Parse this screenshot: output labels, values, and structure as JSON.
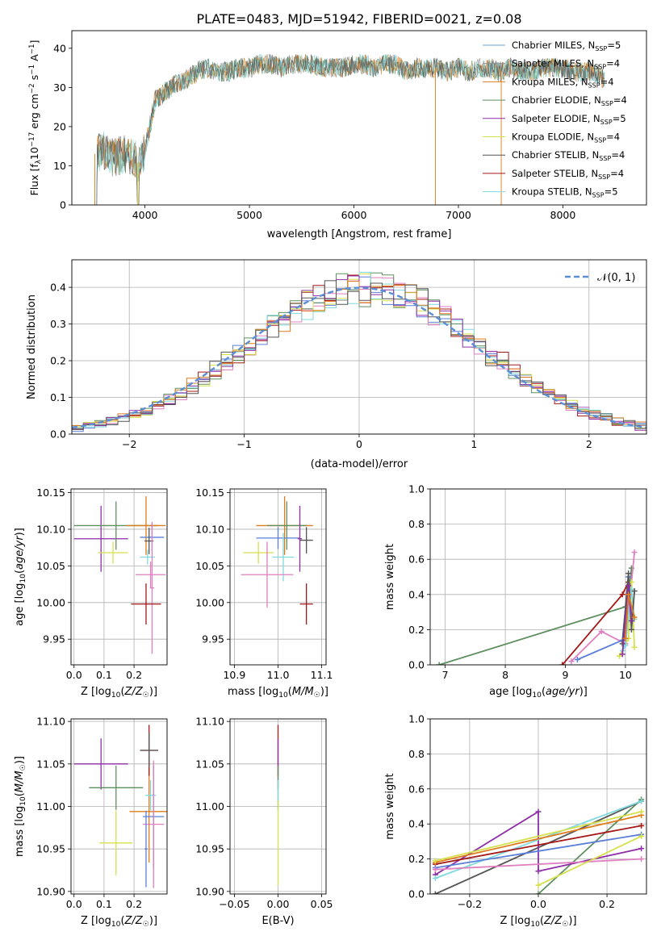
{
  "figure_title": "PLATE=0483, MJD=51942, FIBERID=0021, z=0.08",
  "colors": {
    "chabrier_miles": "#6aa6d6",
    "salpeter_miles": "#8c8c8c",
    "kroupa_miles": "#e07b1c",
    "chabrier_elodie": "#5e8f5e",
    "salpeter_elodie": "#8e2fa8",
    "kroupa_elodie": "#d6e04a",
    "chabrier_stelib": "#555555",
    "salpeter_stelib": "#a41818",
    "kroupa_stelib": "#7fd9e0",
    "pink": "#e07fbf",
    "blue": "#5b7fd8",
    "dashed_normal": "#5a8fd6"
  },
  "chart_data": [
    {
      "id": "spectrum",
      "type": "line",
      "title": "PLATE=0483, MJD=51942, FIBERID=0021, z=0.08",
      "xlabel": "wavelength [Angstrom, rest frame]",
      "ylabel": "Flux [f_λ 10^-17 erg cm^-2 s^-1 A^-1]",
      "xlim": [
        3300,
        8800
      ],
      "ylim": [
        0,
        44.5
      ],
      "xticks": [
        "4000",
        "5000",
        "6000",
        "7000",
        "8000"
      ],
      "yticks": [
        "0",
        "10",
        "20",
        "30",
        "40"
      ],
      "grid": false,
      "legend_position": "top-right",
      "series": [
        {
          "name": "Chabrier MILES, N_SSP=5"
        },
        {
          "name": "Salpeter MILES, N_SSP=4"
        },
        {
          "name": "Kroupa MILES, N_SSP=4"
        },
        {
          "name": "Chabrier ELODIE, N_SSP=4"
        },
        {
          "name": "Salpeter ELODIE, N_SSP=5"
        },
        {
          "name": "Kroupa ELODIE, N_SSP=4"
        },
        {
          "name": "Chabrier STELIB, N_SSP=4"
        },
        {
          "name": "Salpeter STELIB, N_SSP=4"
        },
        {
          "name": "Kroupa STELIB, N_SSP=5"
        }
      ],
      "envelope": {
        "x": [
          3520,
          3600,
          3700,
          3800,
          3900,
          3950,
          4000,
          4100,
          4200,
          4300,
          4400,
          4500,
          4600,
          4700,
          4800,
          4900,
          5000,
          5100,
          5200,
          5300,
          5400,
          5500,
          5600,
          5700,
          5800,
          5900,
          6000,
          6100,
          6200,
          6300,
          6400,
          6500,
          6600,
          6700,
          6800,
          6900,
          7000,
          7100,
          7200,
          7300,
          7400,
          7500,
          7600,
          7700,
          7800,
          7900,
          8000,
          8100,
          8200,
          8300,
          8400
        ],
        "y": [
          13,
          14,
          12,
          13,
          12,
          10,
          14,
          27,
          29,
          31,
          32,
          34,
          35,
          34,
          34,
          35,
          35,
          36,
          36,
          35,
          36,
          36,
          36,
          35,
          35,
          35,
          36,
          36,
          35,
          36,
          36,
          34,
          35,
          35,
          35,
          34,
          35,
          34,
          35,
          35,
          34,
          35,
          34,
          34,
          35,
          35,
          35,
          34,
          34,
          34,
          32
        ]
      },
      "drops_to_zero_at": [
        3520,
        3930,
        6780,
        7410
      ]
    },
    {
      "id": "residual_hist",
      "type": "line",
      "xlabel": "(data-model)/error",
      "ylabel": "Normed distribution",
      "xlim": [
        -2.5,
        2.5
      ],
      "ylim": [
        0,
        0.475
      ],
      "xticks": [
        "-2",
        "-1",
        "0",
        "1",
        "2"
      ],
      "yticks": [
        "0.0",
        "0.1",
        "0.2",
        "0.3",
        "0.4"
      ],
      "grid": true,
      "legend_position": "top-right",
      "legend": [
        "𝒩(0, 1)"
      ],
      "bin_edges_start": -2.5,
      "bin_width": 0.1,
      "normal_curve": {
        "mean": 0,
        "sigma": 1
      }
    },
    {
      "id": "age_vs_Z",
      "type": "scatter",
      "xlabel": "Z [log10(Z/Z☉)]",
      "ylabel": "age [log10(age/yr)]",
      "xlim": [
        -0.01,
        0.31
      ],
      "ylim": [
        9.915,
        10.155
      ],
      "xticks": [
        "0.0",
        "0.1",
        "0.2"
      ],
      "yticks": [
        "9.95",
        "10.00",
        "10.05",
        "10.10",
        "10.15"
      ],
      "grid": true,
      "points": [
        {
          "x": 0.09,
          "y": 10.087,
          "xerr": 0.09,
          "yerr": 0.045,
          "color": "#8e2fa8"
        },
        {
          "x": 0.14,
          "y": 10.105,
          "xerr": 0.14,
          "yerr": 0.033,
          "color": "#5e8f5e"
        },
        {
          "x": 0.13,
          "y": 10.068,
          "xerr": 0.05,
          "yerr": 0.015,
          "color": "#d6e04a"
        },
        {
          "x": 0.24,
          "y": 10.105,
          "xerr": 0.065,
          "yerr": 0.04,
          "color": "#e07b1c"
        },
        {
          "x": 0.26,
          "y": 10.089,
          "xerr": 0.04,
          "yerr": 0.02,
          "color": "#5b7fd8"
        },
        {
          "x": 0.25,
          "y": 10.084,
          "xerr": 0.015,
          "yerr": 0.018,
          "color": "#555555"
        },
        {
          "x": 0.245,
          "y": 10.062,
          "xerr": 0.025,
          "yerr": 0.01,
          "color": "#7fd9e0"
        },
        {
          "x": 0.255,
          "y": 10.038,
          "xerr": 0.05,
          "yerr": 0.018,
          "color": "#e07fbf"
        },
        {
          "x": 0.26,
          "y": 10.02,
          "xerr": 0.007,
          "yerr": 0.09,
          "color": "#e07fbf"
        },
        {
          "x": 0.24,
          "y": 9.998,
          "xerr": 0.05,
          "yerr": 0.028,
          "color": "#a41818"
        }
      ]
    },
    {
      "id": "age_vs_mass",
      "type": "scatter",
      "xlabel": "mass [log10(M/M☉)]",
      "ylabel": "",
      "xlim": [
        10.89,
        11.11
      ],
      "ylim": [
        9.915,
        10.155
      ],
      "xticks": [
        "10.9",
        "11.0",
        "11.1"
      ],
      "yticks": [
        "9.95",
        "10.00",
        "10.05",
        "10.10",
        "10.15"
      ],
      "grid": true,
      "points": [
        {
          "x": 11.015,
          "y": 10.105,
          "xerr": 0.065,
          "yerr": 0.04,
          "color": "#e07b1c"
        },
        {
          "x": 11.02,
          "y": 10.105,
          "xerr": 0.045,
          "yerr": 0.033,
          "color": "#5e8f5e"
        },
        {
          "x": 11.0,
          "y": 10.088,
          "xerr": 0.05,
          "yerr": 0.015,
          "color": "#5b7fd8"
        },
        {
          "x": 11.065,
          "y": 10.085,
          "xerr": 0.015,
          "yerr": 0.018,
          "color": "#555555"
        },
        {
          "x": 11.05,
          "y": 10.087,
          "xerr": 0.005,
          "yerr": 0.045,
          "color": "#8e2fa8"
        },
        {
          "x": 10.955,
          "y": 10.068,
          "xerr": 0.035,
          "yerr": 0.015,
          "color": "#d6e04a"
        },
        {
          "x": 11.012,
          "y": 10.062,
          "xerr": 0.025,
          "yerr": 0.033,
          "color": "#7fd9e0"
        },
        {
          "x": 10.975,
          "y": 10.038,
          "xerr": 0.06,
          "yerr": 0.045,
          "color": "#e07fbf"
        },
        {
          "x": 11.065,
          "y": 9.998,
          "xerr": 0.015,
          "yerr": 0.028,
          "color": "#a41818"
        }
      ]
    },
    {
      "id": "mass_weight_vs_age",
      "type": "line",
      "xlabel": "age [log10(age/yr)]",
      "ylabel": "mass weight",
      "xlim": [
        6.75,
        10.35
      ],
      "ylim": [
        0,
        1
      ],
      "xticks": [
        "7",
        "8",
        "9",
        "10"
      ],
      "yticks": [
        "0.0",
        "0.2",
        "0.4",
        "0.6",
        "0.8",
        "1.0"
      ],
      "grid": true,
      "series": [
        {
          "color": "#5e8f5e",
          "x": [
            6.9,
            10.0,
            10.05,
            10.1
          ],
          "y": [
            0.0,
            0.33,
            0.35,
            0.55
          ]
        },
        {
          "color": "#a41818",
          "x": [
            8.95,
            9.95,
            10.05,
            10.1
          ],
          "y": [
            0.0,
            0.4,
            0.47,
            0.3
          ]
        },
        {
          "color": "#e07fbf",
          "x": [
            9.1,
            9.6,
            10.0,
            10.15
          ],
          "y": [
            0.02,
            0.19,
            0.12,
            0.64
          ]
        },
        {
          "color": "#5b7fd8",
          "x": [
            9.2,
            9.95,
            10.05,
            10.1
          ],
          "y": [
            0.03,
            0.14,
            0.5,
            0.3
          ]
        },
        {
          "color": "#d6e04a",
          "x": [
            9.9,
            10.05,
            10.1,
            10.15
          ],
          "y": [
            0.05,
            0.15,
            0.47,
            0.1
          ]
        },
        {
          "color": "#7fd9e0",
          "x": [
            9.95,
            10.0,
            10.1,
            10.15
          ],
          "y": [
            0.08,
            0.11,
            0.43,
            0.26
          ]
        },
        {
          "color": "#555555",
          "x": [
            9.95,
            10.05,
            10.1,
            10.15
          ],
          "y": [
            0.12,
            0.52,
            0.2,
            0.42
          ]
        },
        {
          "color": "#8e2fa8",
          "x": [
            9.95,
            10.05,
            10.1
          ],
          "y": [
            0.06,
            0.45,
            0.25
          ]
        },
        {
          "color": "#e07b1c",
          "x": [
            10.0,
            10.05,
            10.15
          ],
          "y": [
            0.15,
            0.4,
            0.27
          ]
        }
      ]
    },
    {
      "id": "mass_vs_Z",
      "type": "scatter",
      "xlabel": "Z [log10(Z/Z☉)]",
      "ylabel": "mass [log10(M/M☉)]",
      "xlim": [
        -0.01,
        0.31
      ],
      "ylim": [
        10.897,
        11.103
      ],
      "xticks": [
        "0.0",
        "0.1",
        "0.2"
      ],
      "yticks": [
        "10.90",
        "10.95",
        "11.00",
        "11.05",
        "11.10"
      ],
      "grid": true,
      "points": [
        {
          "x": 0.09,
          "y": 11.05,
          "xerr": 0.09,
          "yerr": 0.03,
          "color": "#8e2fa8"
        },
        {
          "x": 0.14,
          "y": 11.022,
          "xerr": 0.09,
          "yerr": 0.026,
          "color": "#5e8f5e"
        },
        {
          "x": 0.14,
          "y": 10.957,
          "xerr": 0.055,
          "yerr": 0.038,
          "color": "#d6e04a"
        },
        {
          "x": 0.25,
          "y": 10.994,
          "xerr": 0.065,
          "yerr": 0.06,
          "color": "#e07b1c"
        },
        {
          "x": 0.25,
          "y": 11.066,
          "xerr": 0.03,
          "yerr": 0.03,
          "color": "#a41818"
        },
        {
          "x": 0.25,
          "y": 11.066,
          "xerr": 0.03,
          "yerr": 0.02,
          "color": "#555555"
        },
        {
          "x": 0.255,
          "y": 11.013,
          "xerr": 0.018,
          "yerr": 0.018,
          "color": "#7fd9e0"
        },
        {
          "x": 0.265,
          "y": 10.988,
          "xerr": 0.035,
          "yerr": 0.06,
          "color": "#5b7fd8"
        },
        {
          "x": 0.265,
          "y": 10.979,
          "xerr": 0.035,
          "yerr": 0.075,
          "color": "#e07fbf"
        },
        {
          "x": 0.24,
          "y": 10.95,
          "xerr": 0.005,
          "yerr": 0.045,
          "color": "#5b7fd8"
        }
      ]
    },
    {
      "id": "mass_vs_ebv",
      "type": "scatter",
      "xlabel": "E(B-V)",
      "ylabel": "",
      "xlim": [
        -0.055,
        0.055
      ],
      "ylim": [
        10.897,
        11.103
      ],
      "xticks": [
        "-0.05",
        "0.00",
        "0.05"
      ],
      "yticks": [
        "10.90",
        "10.95",
        "11.00",
        "11.05",
        "11.10"
      ],
      "grid": true,
      "points": [
        {
          "x": 0.0,
          "y": 11.066,
          "xerr": 0.0,
          "yerr": 0.03,
          "color": "#a41818"
        },
        {
          "x": 0.0,
          "y": 11.05,
          "xerr": 0.0,
          "yerr": 0.03,
          "color": "#8e2fa8"
        },
        {
          "x": 0.0,
          "y": 11.022,
          "xerr": 0.0,
          "yerr": 0.026,
          "color": "#5e8f5e"
        },
        {
          "x": 0.0,
          "y": 11.013,
          "xerr": 0.0,
          "yerr": 0.018,
          "color": "#7fd9e0"
        },
        {
          "x": 0.0,
          "y": 10.957,
          "xerr": 0.0,
          "yerr": 0.05,
          "color": "#d6e04a"
        }
      ]
    },
    {
      "id": "mass_weight_vs_Z",
      "type": "line",
      "xlabel": "Z [log10(Z/Z☉)]",
      "ylabel": "mass weight",
      "xlim": [
        -0.315,
        0.315
      ],
      "ylim": [
        0,
        1
      ],
      "xticks": [
        "-0.2",
        "0.0",
        "0.2"
      ],
      "yticks": [
        "0.0",
        "0.2",
        "0.4",
        "0.6",
        "0.8",
        "1.0"
      ],
      "grid": true,
      "series": [
        {
          "color": "#5e8f5e",
          "x": [
            0.0,
            0.3
          ],
          "y": [
            0.0,
            0.54
          ]
        },
        {
          "color": "#555555",
          "x": [
            -0.3,
            0.3
          ],
          "y": [
            0.0,
            0.53
          ]
        },
        {
          "color": "#8e2fa8",
          "x": [
            -0.3,
            0.0,
            0.0,
            0.3
          ],
          "y": [
            0.11,
            0.47,
            0.13,
            0.26
          ]
        },
        {
          "color": "#7fd9e0",
          "x": [
            -0.3,
            0.3
          ],
          "y": [
            0.09,
            0.53
          ]
        },
        {
          "color": "#a41818",
          "x": [
            -0.3,
            0.3
          ],
          "y": [
            0.17,
            0.39
          ]
        },
        {
          "color": "#e07b1c",
          "x": [
            -0.3,
            0.3
          ],
          "y": [
            0.18,
            0.45
          ]
        },
        {
          "color": "#d6e04a",
          "x": [
            -0.3,
            0.3
          ],
          "y": [
            0.19,
            0.47
          ]
        },
        {
          "color": "#5b7fd8",
          "x": [
            -0.3,
            0.3
          ],
          "y": [
            0.15,
            0.34
          ]
        },
        {
          "color": "#e07fbf",
          "x": [
            -0.3,
            0.3
          ],
          "y": [
            0.14,
            0.2
          ]
        },
        {
          "color": "#d6e04a",
          "x": [
            0.0,
            0.3
          ],
          "y": [
            0.05,
            0.33
          ]
        }
      ]
    }
  ]
}
